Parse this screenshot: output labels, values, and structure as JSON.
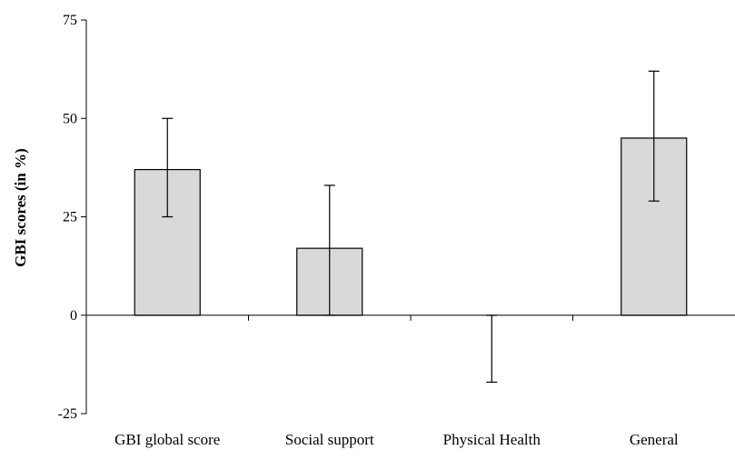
{
  "chart_data": {
    "type": "bar",
    "title": "",
    "xlabel": "",
    "ylabel": "GBI scores (in %)",
    "categories": [
      "GBI global score",
      "Social support",
      "Physical Health",
      "General"
    ],
    "values": [
      37,
      17,
      0,
      45
    ],
    "error_low": [
      25,
      0,
      -17,
      29
    ],
    "error_high": [
      50,
      33,
      0,
      62
    ],
    "ylim": [
      -25,
      75
    ],
    "yticks": [
      -25,
      0,
      25,
      50,
      75
    ],
    "ytick_labels": [
      "-25",
      "0",
      "25",
      "50",
      "75"
    ],
    "grid": false,
    "legend": "none",
    "bar_fill": "#d9d9d9",
    "bar_stroke": "#000000"
  }
}
